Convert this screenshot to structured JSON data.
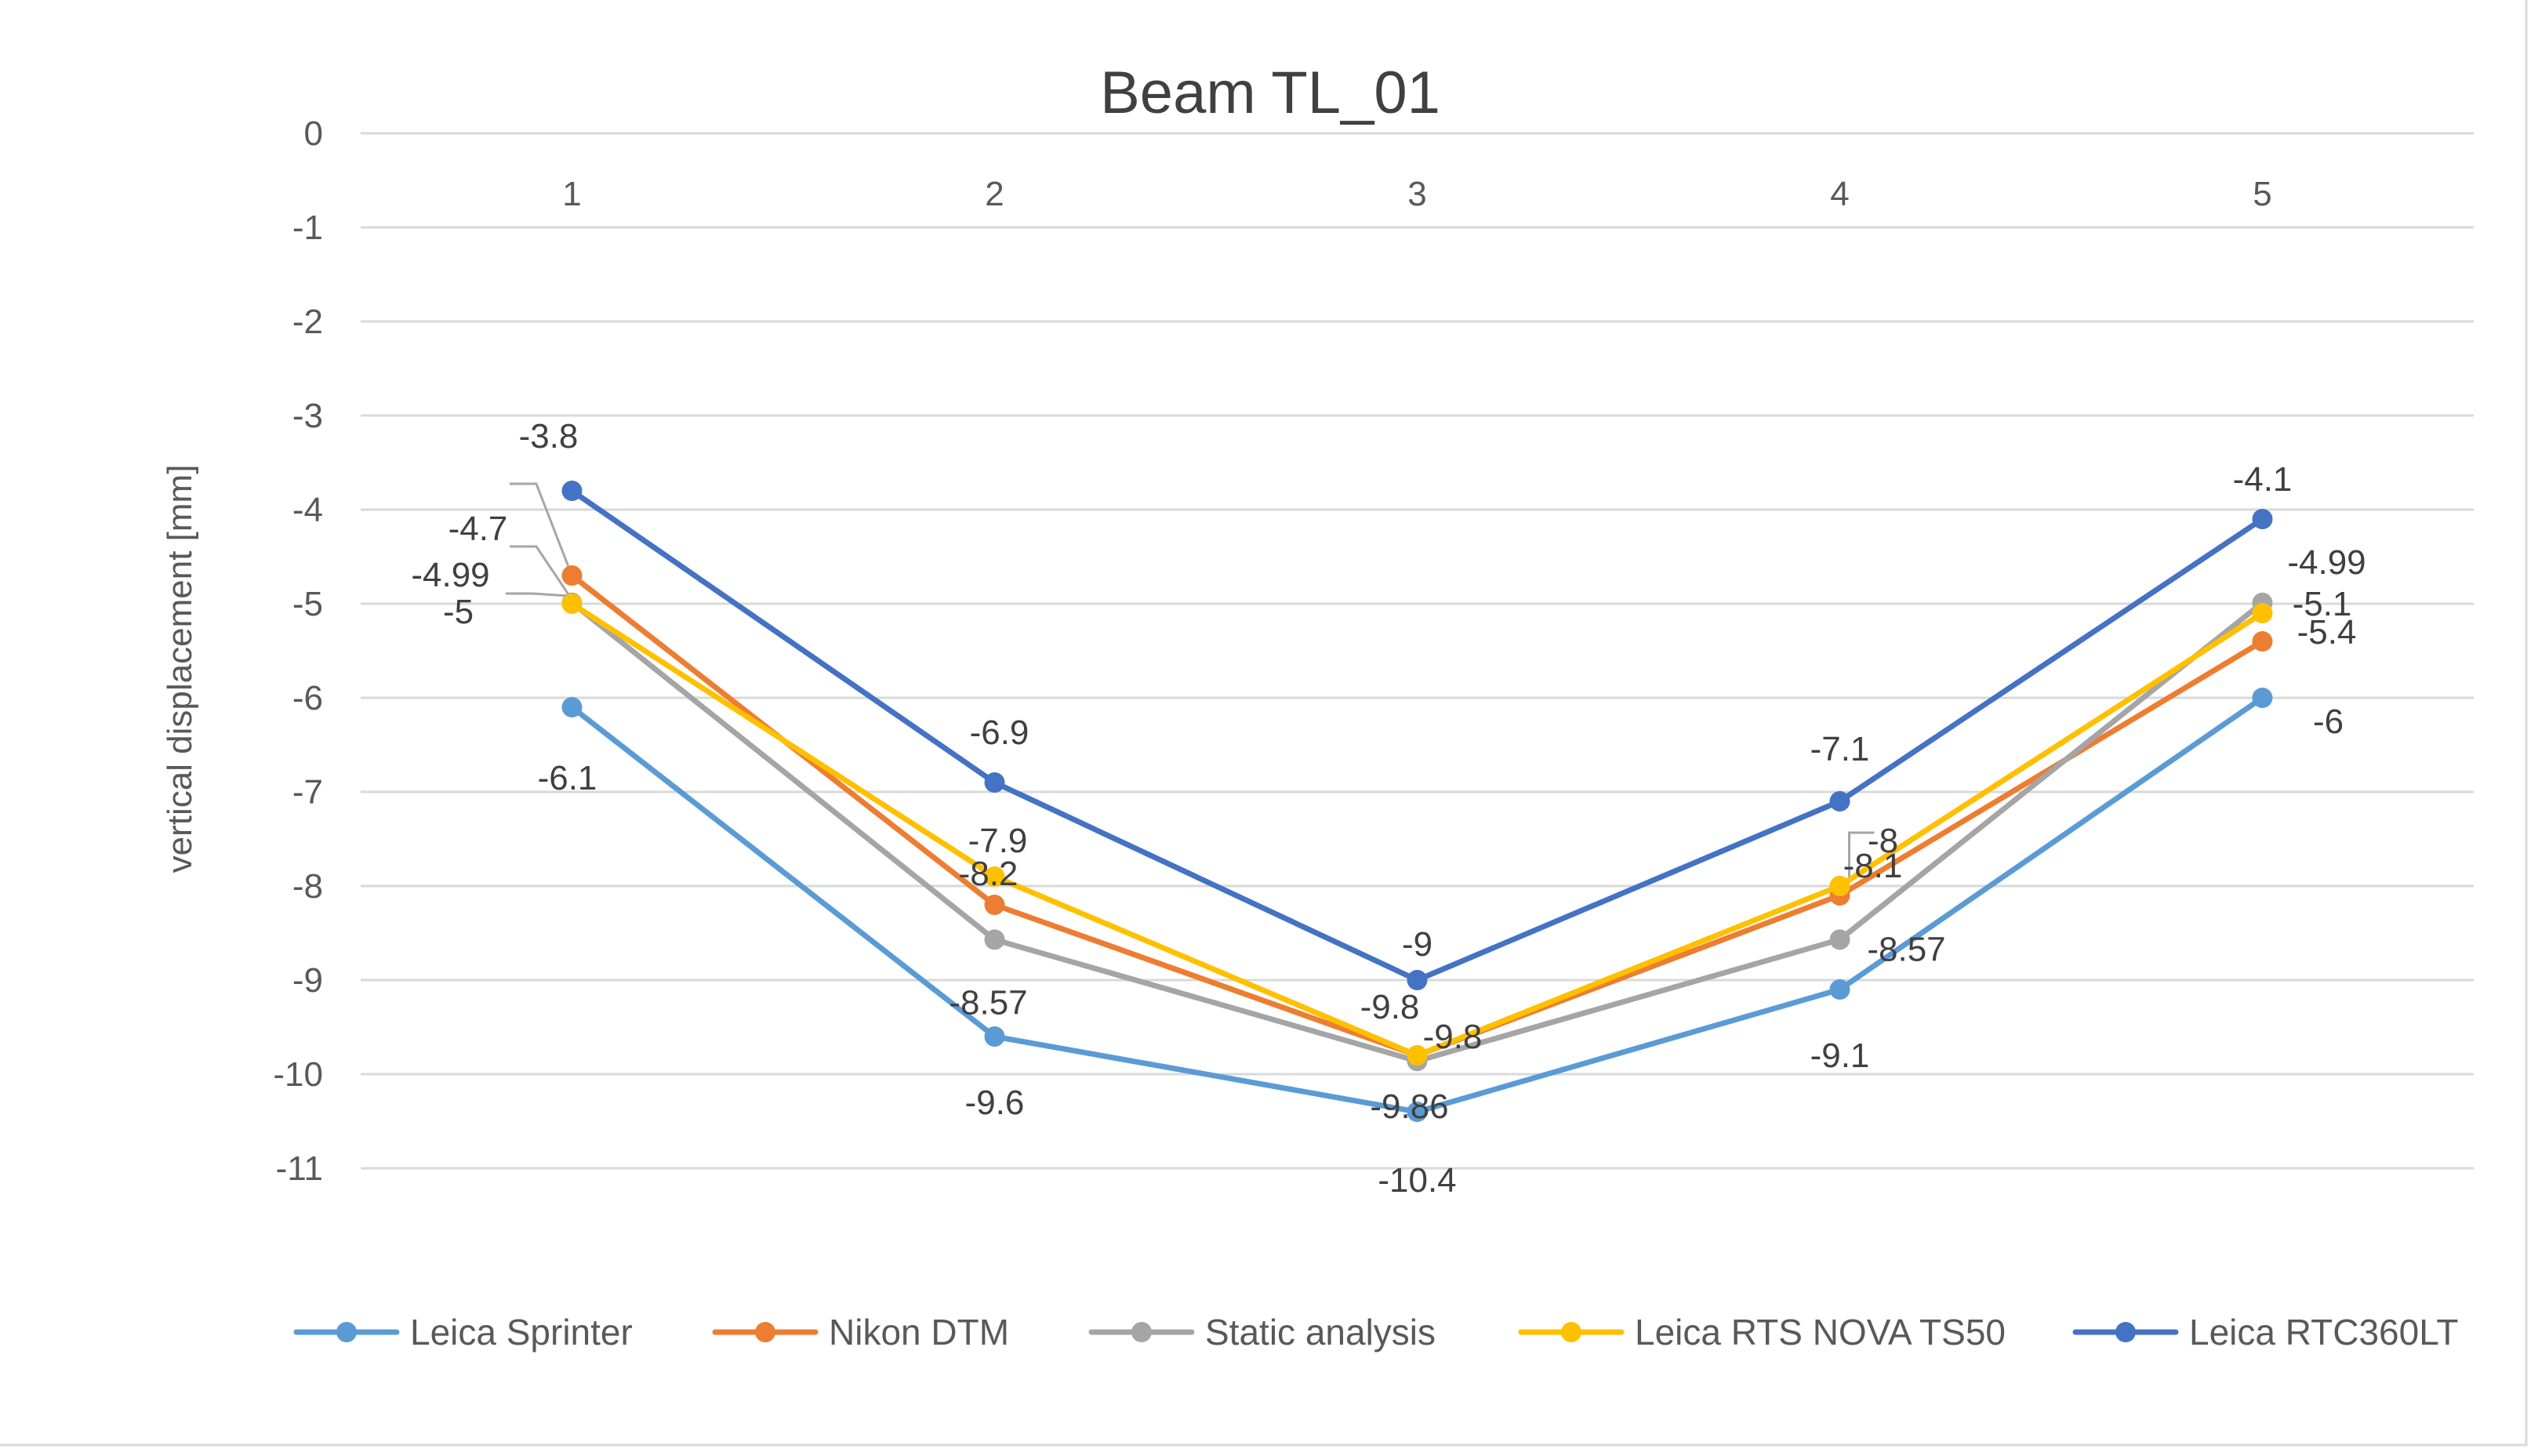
{
  "chart_data": {
    "type": "line",
    "title": "Beam TL_01",
    "xlabel": "",
    "ylabel": "vertical displacement [mm]",
    "categories": [
      "1",
      "2",
      "3",
      "4",
      "5"
    ],
    "ylim": [
      -11,
      0
    ],
    "yticks": [
      0,
      -1,
      -2,
      -3,
      -4,
      -5,
      -6,
      -7,
      -8,
      -9,
      -10,
      -11
    ],
    "x_axis_position": "top",
    "grid": true,
    "legend_position": "bottom",
    "series": [
      {
        "name": "Leica Sprinter",
        "color": "#5b9bd5",
        "values": [
          -6.1,
          -9.6,
          -10.4,
          -9.1,
          -6
        ],
        "labels": [
          "-6.1",
          "-9.6",
          "-10.4",
          "-9.1",
          "-6"
        ]
      },
      {
        "name": "Nikon DTM",
        "color": "#ed7d31",
        "values": [
          -4.7,
          -8.2,
          -9.8,
          -8.1,
          -5.4
        ],
        "labels": [
          "-4.7",
          "-8.2",
          "-9.8",
          "-8.1",
          "-5.4"
        ]
      },
      {
        "name": "Static analysis",
        "color": "#a5a5a5",
        "values": [
          -4.99,
          -8.57,
          -9.86,
          -8.57,
          -4.99
        ],
        "labels": [
          "-4.99",
          "-8.57",
          "-9.86",
          "-8.57",
          "-4.99"
        ]
      },
      {
        "name": "Leica RTS NOVA TS50",
        "color": "#ffc000",
        "values": [
          -5,
          -7.9,
          -9.8,
          -8,
          -5.1
        ],
        "labels": [
          "-5",
          "-7.9",
          "-9.8",
          "-8",
          "-5.1"
        ]
      },
      {
        "name": "Leica RTC360LT",
        "color": "#4472c4",
        "values": [
          -3.8,
          -6.9,
          -9,
          -7.1,
          -4.1
        ],
        "labels": [
          "-3.8",
          "-6.9",
          "-9",
          "-7.1",
          "-4.1"
        ]
      }
    ]
  }
}
